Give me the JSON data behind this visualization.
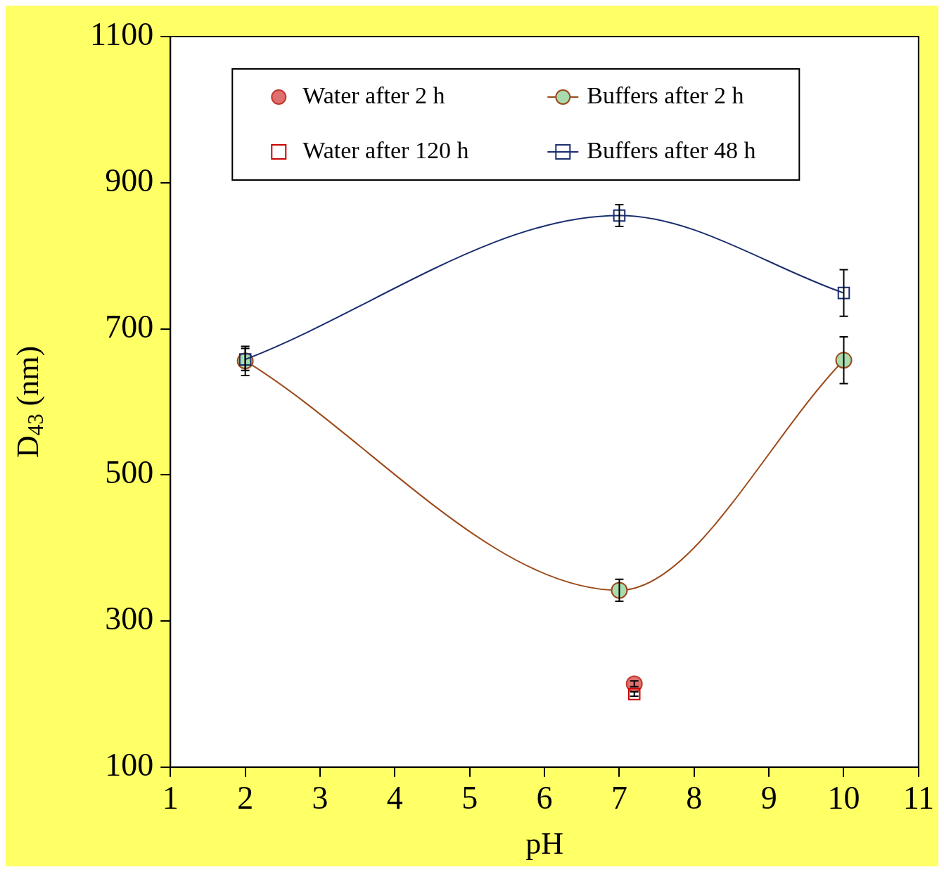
{
  "chart_data": {
    "type": "scatter",
    "xlabel": "pH",
    "ylabel": "D$_{43}$ (nm)",
    "xlim": [
      1,
      11
    ],
    "xticks": [
      1,
      2,
      3,
      4,
      5,
      6,
      7,
      8,
      9,
      10,
      11
    ],
    "ylim": [
      100,
      1100
    ],
    "yticks": [
      100,
      300,
      500,
      700,
      900,
      1100
    ],
    "grid": false,
    "legend": "top",
    "series": [
      {
        "name": "Water after 2 h",
        "type": "scatter",
        "marker": "circle",
        "color": "#c0392b",
        "x": [
          7.2
        ],
        "values": [
          214
        ],
        "errors": [
          4
        ]
      },
      {
        "name": "Buffers after 2 h",
        "type": "line",
        "marker": "circle",
        "color": "#9c4a1a",
        "x": [
          2,
          7,
          10
        ],
        "values": [
          656,
          342,
          657
        ],
        "errors": [
          20,
          15,
          32
        ]
      },
      {
        "name": "Water after 120 h",
        "type": "scatter",
        "marker": "square",
        "color": "#cc0000",
        "x": [
          7.2
        ],
        "values": [
          200
        ],
        "errors": [
          3
        ]
      },
      {
        "name": "Buffers after 48 h",
        "type": "line",
        "marker": "square",
        "color": "#1a2e6e",
        "x": [
          2,
          7,
          10
        ],
        "values": [
          658,
          855,
          749
        ],
        "errors": [
          15,
          15,
          32
        ]
      }
    ]
  }
}
